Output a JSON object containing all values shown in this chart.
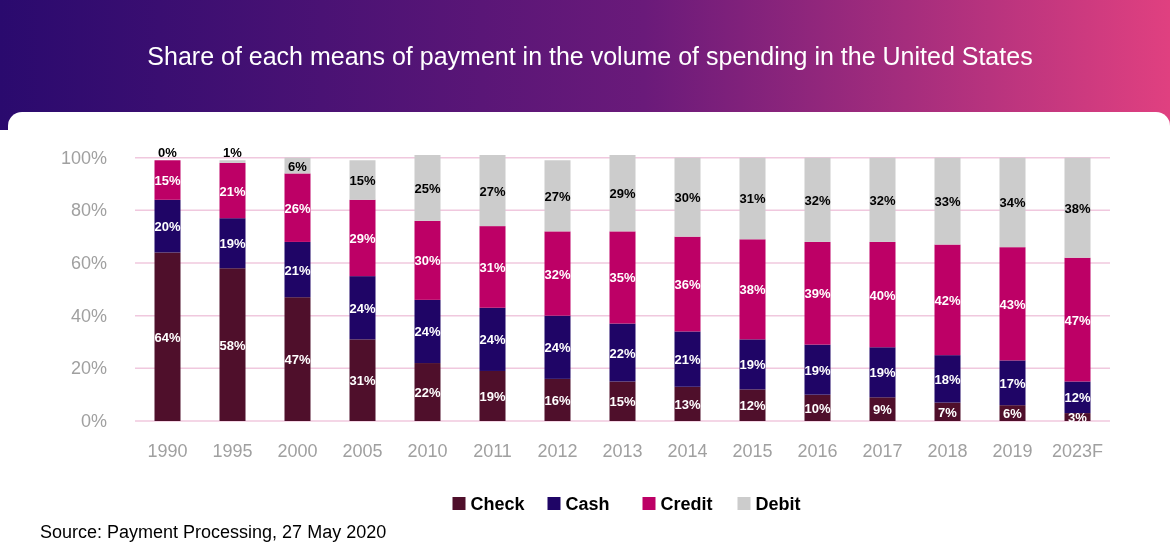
{
  "chart_data": {
    "type": "bar",
    "stacked": true,
    "title": "Share of each means of payment in the volume of spending in the United States",
    "categories": [
      "1990",
      "1995",
      "2000",
      "2005",
      "2010",
      "2011",
      "2012",
      "2013",
      "2014",
      "2015",
      "2016",
      "2017",
      "2018",
      "2019",
      "2023F"
    ],
    "series": [
      {
        "name": "Check",
        "color": "#4f0f2b",
        "values": [
          64,
          58,
          47,
          31,
          22,
          19,
          16,
          15,
          13,
          12,
          10,
          9,
          7,
          6,
          3
        ],
        "value_labels": [
          "64%",
          "58%",
          "47%",
          "31%",
          "22%",
          "19%",
          "16%",
          "15%",
          "13%",
          "12%",
          "10%",
          "9%",
          "7%",
          "6%",
          "3%"
        ]
      },
      {
        "name": "Cash",
        "color": "#1f0566",
        "values": [
          20,
          19,
          21,
          24,
          24,
          24,
          24,
          22,
          21,
          19,
          19,
          19,
          18,
          17,
          12
        ],
        "value_labels": [
          "20%",
          "19%",
          "21%",
          "24%",
          "24%",
          "24%",
          "24%",
          "22%",
          "21%",
          "19%",
          "19%",
          "19%",
          "18%",
          "17%",
          "12%"
        ]
      },
      {
        "name": "Credit",
        "color": "#bd0066",
        "values": [
          15,
          21,
          26,
          29,
          30,
          31,
          32,
          35,
          36,
          38,
          39,
          40,
          42,
          43,
          47
        ],
        "value_labels": [
          "15%",
          "21%",
          "26%",
          "29%",
          "30%",
          "31%",
          "32%",
          "35%",
          "36%",
          "38%",
          "39%",
          "40%",
          "42%",
          "43%",
          "47%"
        ]
      },
      {
        "name": "Debit",
        "color": "#cccccc",
        "values": [
          0,
          1,
          6,
          15,
          25,
          27,
          27,
          29,
          30,
          31,
          32,
          32,
          33,
          34,
          38
        ],
        "value_labels": [
          "0%",
          "1%",
          "6%",
          "15%",
          "25%",
          "27%",
          "27%",
          "29%",
          "30%",
          "31%",
          "32%",
          "32%",
          "33%",
          "34%",
          "38%"
        ]
      }
    ],
    "ylim": [
      0,
      101
    ],
    "yticks": [
      {
        "value": 0,
        "label": "0%"
      },
      {
        "value": 20,
        "label": "20%"
      },
      {
        "value": 40,
        "label": "40%"
      },
      {
        "value": 60,
        "label": "60%"
      },
      {
        "value": 80,
        "label": "80%"
      },
      {
        "value": 100,
        "label": "100%"
      }
    ],
    "grid": "y",
    "legend": "bottom",
    "annotations": [
      "Source: Payment Processing, 27 May 2020"
    ]
  }
}
